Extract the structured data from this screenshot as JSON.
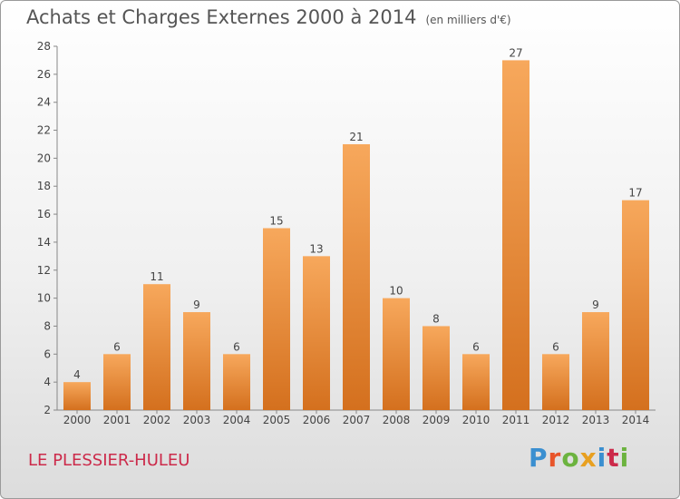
{
  "header": {
    "title": "Achats et Charges Externes 2000 à 2014",
    "unit": "(en milliers d'€)"
  },
  "footer": {
    "location": "LE PLESSIER-HULEU",
    "logo": "Proxiti",
    "logo_colors": [
      "#3a8fd0",
      "#e8552a",
      "#6cb33f",
      "#e8a020",
      "#3a8fd0",
      "#cc2a4a",
      "#6cb33f"
    ]
  },
  "colors": {
    "bar_light": "#f7a85c",
    "bar_dark": "#d4701e",
    "axis": "#888888",
    "grid_tick": "#888888"
  },
  "chart_data": {
    "type": "bar",
    "title": "Achats et Charges Externes 2000 à 2014",
    "subtitle": "(en milliers d'€)",
    "xlabel": "",
    "ylabel": "",
    "categories": [
      "2000",
      "2001",
      "2002",
      "2003",
      "2004",
      "2005",
      "2006",
      "2007",
      "2008",
      "2009",
      "2010",
      "2011",
      "2012",
      "2013",
      "2014"
    ],
    "values": [
      4,
      6,
      11,
      9,
      6,
      15,
      13,
      21,
      10,
      8,
      6,
      27,
      6,
      9,
      17
    ],
    "ylim": [
      2,
      28
    ],
    "yticks": [
      2,
      4,
      6,
      8,
      10,
      12,
      14,
      16,
      18,
      20,
      22,
      24,
      26,
      28
    ],
    "grid": false,
    "legend": "none"
  }
}
